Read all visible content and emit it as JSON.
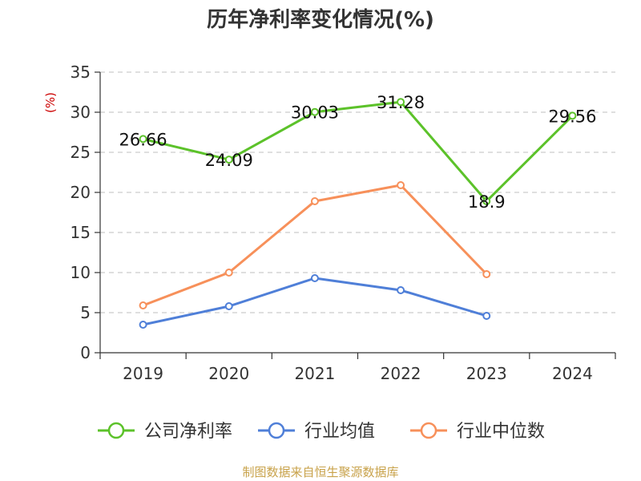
{
  "chart_data": {
    "type": "line",
    "title": "历年净利率变化情况(%)",
    "ylabel": "(%)",
    "categories": [
      "2019",
      "2020",
      "2021",
      "2022",
      "2023",
      "2024"
    ],
    "yticks": [
      "0",
      "5",
      "10",
      "15",
      "20",
      "25",
      "30",
      "35"
    ],
    "ylim": [
      0,
      35
    ],
    "grid": true,
    "legend_position": "bottom",
    "series": [
      {
        "name": "公司净利率",
        "color": "#5cc22a",
        "values": [
          26.66,
          24.09,
          30.03,
          31.28,
          18.9,
          29.56
        ],
        "labels": [
          "26.66",
          "24.09",
          "30.03",
          "31.28",
          "18.9",
          "29.56"
        ]
      },
      {
        "name": "行业均值",
        "color": "#4f7fd8",
        "values": [
          3.5,
          5.8,
          9.3,
          7.8,
          4.6,
          null
        ]
      },
      {
        "name": "行业中位数",
        "color": "#f7905a",
        "values": [
          5.9,
          10.0,
          18.9,
          20.9,
          9.8,
          null
        ]
      }
    ]
  },
  "footer": "制图数据来自恒生聚源数据库"
}
